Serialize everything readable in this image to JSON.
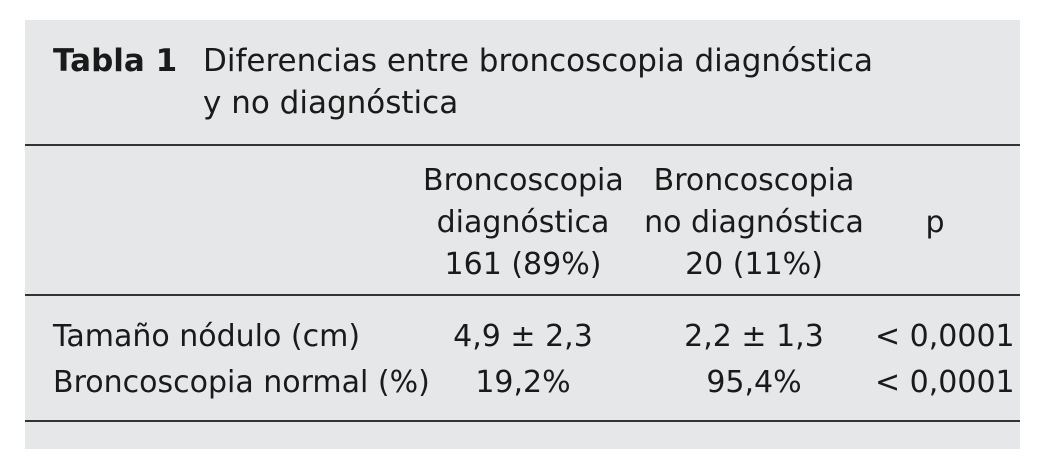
{
  "table": {
    "label": "Tabla 1",
    "title_line1": "Diferencias entre broncoscopia diagnóstica",
    "title_line2": "y no diagnóstica",
    "headers": [
      {
        "lines": [
          "Broncoscopia",
          "diagnóstica",
          "161 (89%)"
        ]
      },
      {
        "lines": [
          "Broncoscopia",
          "no diagnóstica",
          "20 (11%)"
        ]
      },
      {
        "lines": [
          "p"
        ]
      }
    ],
    "rows": [
      {
        "label": "Tamaño nódulo (cm)",
        "diag": "4,9 ± 2,3",
        "nodiag": "2,2 ± 1,3",
        "p": "< 0,0001"
      },
      {
        "label": "Broncoscopia normal (%)",
        "diag": "19,2%",
        "nodiag": "95,4%",
        "p": "< 0,0001"
      }
    ]
  }
}
